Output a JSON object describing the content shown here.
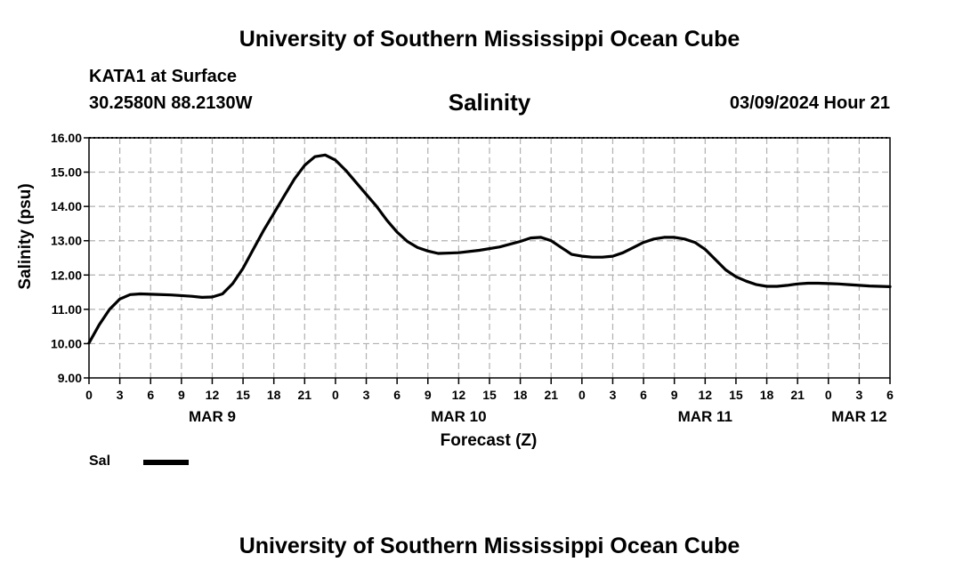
{
  "header": {
    "title": "University of Southern Mississippi Ocean Cube",
    "station": "KATA1 at Surface",
    "coords": "30.2580N  88.2130W",
    "parameter": "Salinity",
    "datetime": "03/09/2024 Hour 21"
  },
  "footer": {
    "title": "University of Southern Mississippi Ocean Cube"
  },
  "legend": {
    "label": "Sal",
    "color": "#000000"
  },
  "chart_data": {
    "type": "line",
    "title": "Salinity",
    "xlabel": "Forecast (Z)",
    "ylabel": "Salinity (psu)",
    "ylim": [
      9.0,
      16.0
    ],
    "xlim_hours": [
      0,
      78
    ],
    "grid": true,
    "y_ticks": [
      "9.00",
      "10.00",
      "11.00",
      "12.00",
      "13.00",
      "14.00",
      "15.00",
      "16.00"
    ],
    "x_tick_labels": [
      "0",
      "3",
      "6",
      "9",
      "12",
      "15",
      "18",
      "21",
      "0",
      "3",
      "6",
      "9",
      "12",
      "15",
      "18",
      "21",
      "0",
      "3",
      "6",
      "9",
      "12",
      "15",
      "18",
      "21",
      "0",
      "3",
      "6"
    ],
    "date_labels": [
      {
        "text": "MAR 9",
        "hour": 12
      },
      {
        "text": "MAR 10",
        "hour": 36
      },
      {
        "text": "MAR 11",
        "hour": 60
      },
      {
        "text": "MAR 12",
        "hour": 75
      }
    ],
    "series": [
      {
        "name": "Sal",
        "x": [
          0,
          1,
          2,
          3,
          4,
          5,
          6,
          8,
          10,
          11,
          12,
          13,
          14,
          15,
          16,
          17,
          18,
          19,
          20,
          21,
          22,
          23,
          24,
          25,
          26,
          27,
          28,
          29,
          30,
          31,
          32,
          33,
          34,
          36,
          38,
          40,
          42,
          43,
          44,
          45,
          46,
          47,
          48,
          49,
          50,
          51,
          52,
          53,
          54,
          55,
          56,
          57,
          58,
          59,
          60,
          61,
          62,
          63,
          64,
          65,
          66,
          67,
          68,
          69,
          70,
          71,
          72,
          73,
          74,
          75,
          76,
          77,
          78
        ],
        "values": [
          10.02,
          10.55,
          11.0,
          11.3,
          11.43,
          11.45,
          11.44,
          11.42,
          11.38,
          11.35,
          11.36,
          11.45,
          11.75,
          12.2,
          12.75,
          13.3,
          13.8,
          14.3,
          14.8,
          15.2,
          15.45,
          15.5,
          15.35,
          15.05,
          14.7,
          14.35,
          14.0,
          13.6,
          13.25,
          12.98,
          12.8,
          12.7,
          12.63,
          12.65,
          12.72,
          12.82,
          12.98,
          13.08,
          13.1,
          13.0,
          12.8,
          12.6,
          12.55,
          12.52,
          12.52,
          12.55,
          12.65,
          12.8,
          12.95,
          13.05,
          13.1,
          13.1,
          13.05,
          12.95,
          12.75,
          12.45,
          12.15,
          11.95,
          11.82,
          11.72,
          11.67,
          11.67,
          11.7,
          11.74,
          11.76,
          11.76,
          11.75,
          11.74,
          11.72,
          11.7,
          11.68,
          11.67,
          11.66
        ]
      }
    ]
  }
}
